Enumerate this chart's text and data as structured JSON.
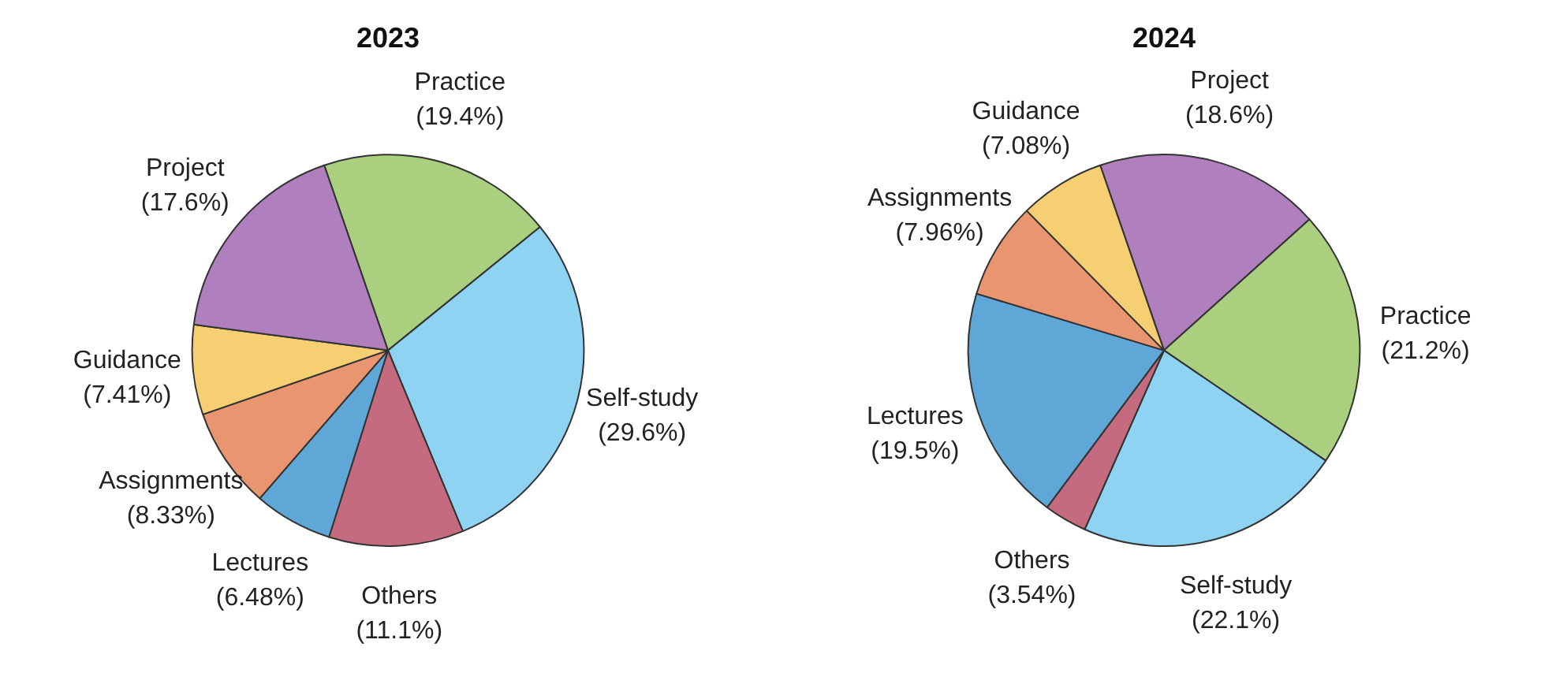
{
  "chart_data": [
    {
      "type": "pie",
      "title": "2023",
      "categories": [
        "Practice",
        "Self-study",
        "Others",
        "Lectures",
        "Assignments",
        "Guidance",
        "Project"
      ],
      "values": [
        19.4,
        29.6,
        11.1,
        6.48,
        8.33,
        7.41,
        17.6
      ],
      "value_labels": [
        "(19.4%)",
        "(29.6%)",
        "(11.1%)",
        "(6.48%)",
        "(8.33%)",
        "(7.41%)",
        "(17.6%)"
      ],
      "colors": [
        "#a9cf7f",
        "#8fd3f2",
        "#c56b80",
        "#5fa7d6",
        "#e9956f",
        "#f5cf72",
        "#b07fbd"
      ]
    },
    {
      "type": "pie",
      "title": "2024",
      "categories": [
        "Project",
        "Practice",
        "Self-study",
        "Others",
        "Lectures",
        "Assignments",
        "Guidance"
      ],
      "values": [
        18.6,
        21.2,
        22.1,
        3.54,
        19.5,
        7.96,
        7.08
      ],
      "value_labels": [
        "(18.6%)",
        "(21.2%)",
        "(22.1%)",
        "(3.54%)",
        "(19.5%)",
        "(7.96%)",
        "(7.08%)"
      ],
      "colors": [
        "#b07fbd",
        "#a9cf7f",
        "#8fd3f2",
        "#c56b80",
        "#5fa7d6",
        "#e9956f",
        "#f5cf72"
      ]
    }
  ]
}
